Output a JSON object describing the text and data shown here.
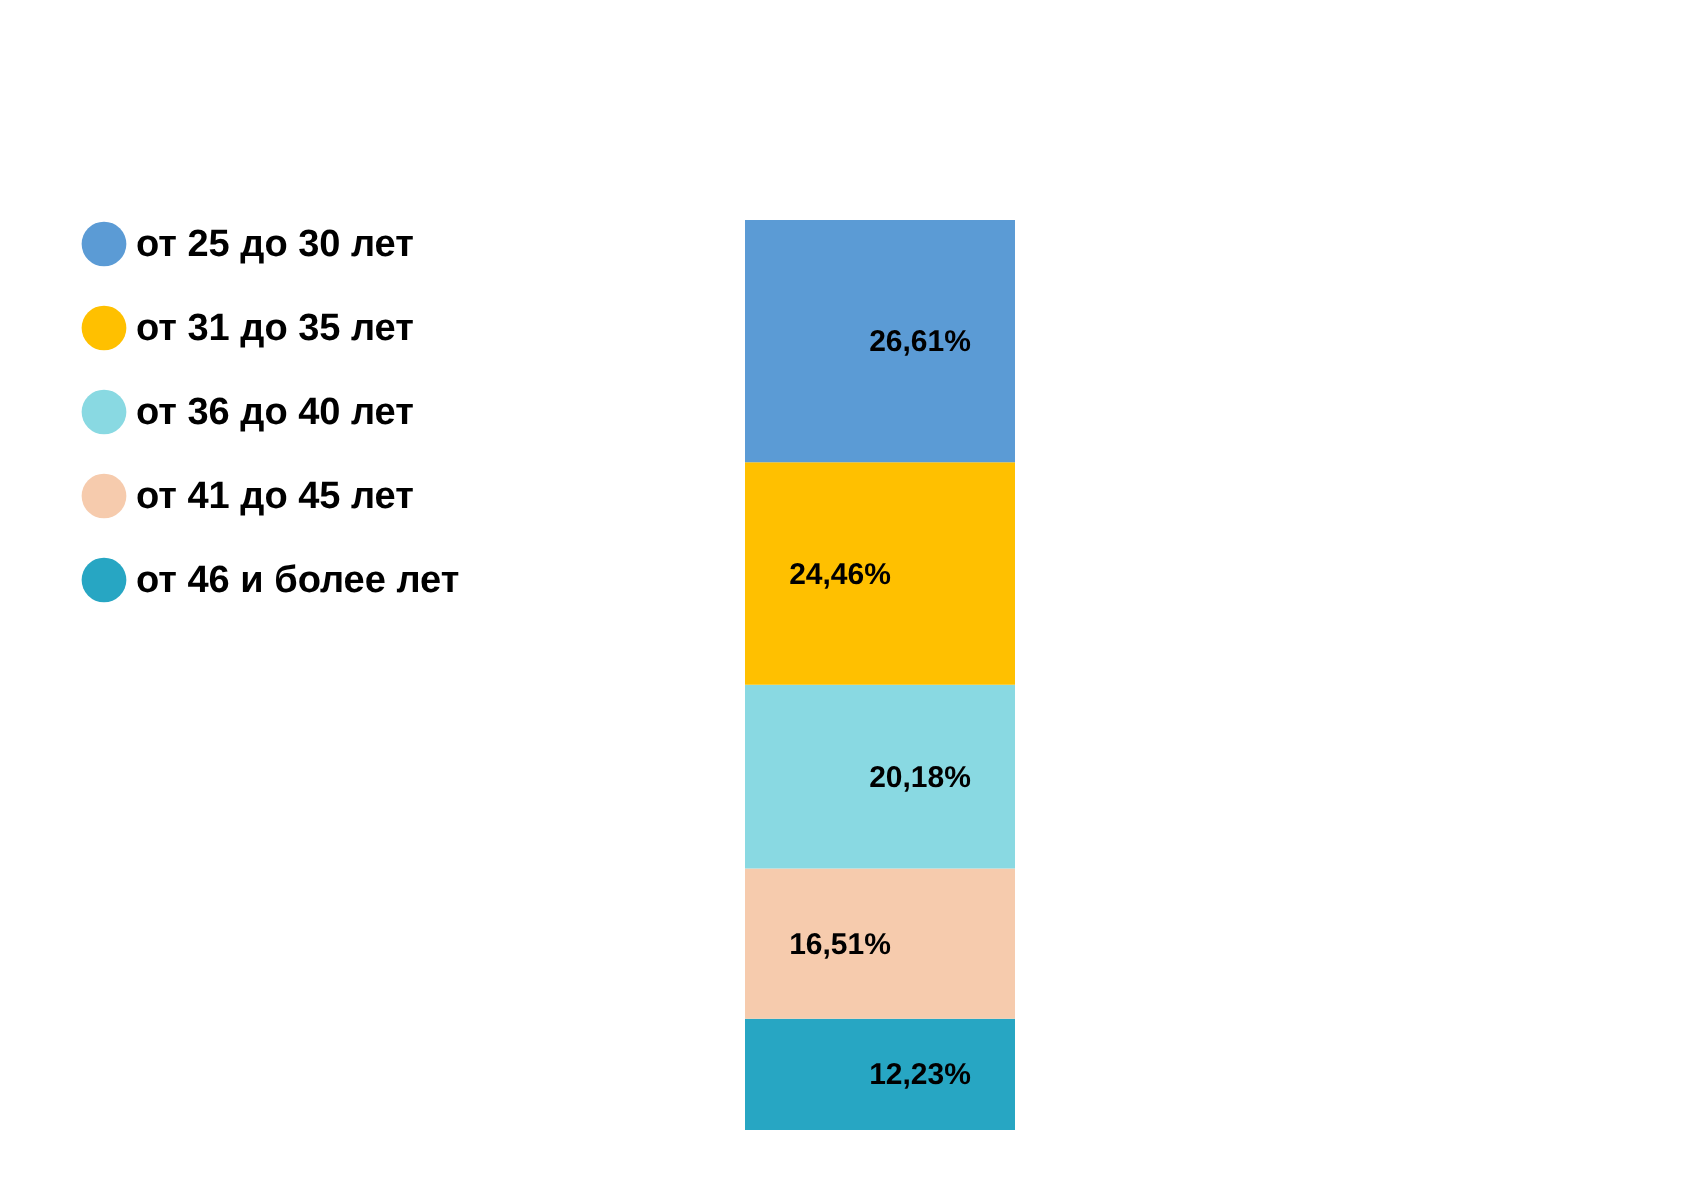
{
  "chart_data": {
    "type": "bar",
    "stacked": true,
    "categories": [
      null
    ],
    "legend": "left",
    "series": [
      {
        "name": "от 46 и более лет",
        "color": "#27a6c3",
        "values": [
          12.23
        ],
        "value_labels": [
          "12,23%"
        ]
      },
      {
        "name": "от 41 до 45 лет",
        "color": "#f6cbad",
        "values": [
          16.51
        ],
        "value_labels": [
          "16,51%"
        ]
      },
      {
        "name": "от 36 до 40 лет",
        "color": "#89d9e2",
        "values": [
          20.18
        ],
        "value_labels": [
          "20,18%"
        ]
      },
      {
        "name": "от 31 до 35 лет",
        "color": "#ffc000",
        "values": [
          24.46
        ],
        "value_labels": [
          "24,46%"
        ]
      },
      {
        "name": "от 25 до 30 лет",
        "color": "#5b9bd5",
        "values": [
          26.61
        ],
        "value_labels": [
          "26,61%"
        ]
      }
    ]
  }
}
